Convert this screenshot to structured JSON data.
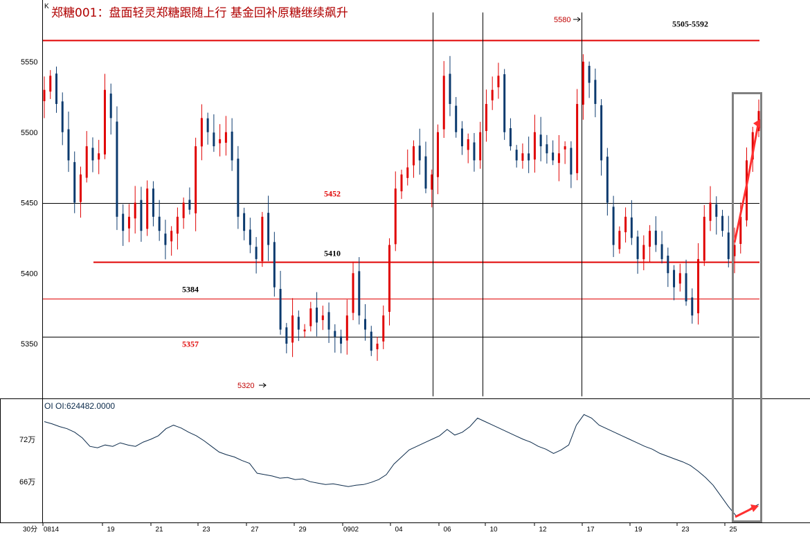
{
  "chart_data": [
    {
      "type": "candlestick",
      "title": "郑糖001：盘面轻灵郑糖跟随上行  基金回补原糖继续飙升",
      "corner_label": "K",
      "ylim": [
        5310,
        5570
      ],
      "yticks": [
        "5550",
        "5500",
        "5450",
        "5400",
        "5350"
      ],
      "xticks": [
        "0814",
        "19",
        "21",
        "23",
        "27",
        "29",
        "0902",
        "04",
        "06",
        "10",
        "12",
        "17",
        "19",
        "23",
        "25",
        "25"
      ],
      "period_label": "30分",
      "close": [
        5530,
        5540,
        5520,
        5500,
        5480,
        5450,
        5470,
        5490,
        5480,
        5485,
        5530,
        5510,
        5440,
        5430,
        5440,
        5450,
        5430,
        5460,
        5440,
        5430,
        5420,
        5430,
        5440,
        5450,
        5445,
        5490,
        5510,
        5500,
        5490,
        5495,
        5500,
        5480,
        5440,
        5430,
        5420,
        5410,
        5440,
        5420,
        5390,
        5360,
        5350,
        5370,
        5360,
        5360,
        5375,
        5365,
        5370,
        5360,
        5355,
        5350,
        5370,
        5400,
        5370,
        5360,
        5345,
        5350,
        5370,
        5420,
        5460,
        5470,
        5475,
        5490,
        5480,
        5460,
        5470,
        5500,
        5540,
        5520,
        5500,
        5490,
        5495,
        5480,
        5500,
        5520,
        5530,
        5540,
        5500,
        5490,
        5480,
        5485,
        5480,
        5500,
        5490,
        5485,
        5480,
        5485,
        5490,
        5470,
        5520,
        5550,
        5535,
        5520,
        5480,
        5450,
        5420,
        5430,
        5440,
        5425,
        5410,
        5420,
        5430,
        5420,
        5410,
        5400,
        5390,
        5400,
        5380,
        5370,
        5410,
        5440,
        5450,
        5440,
        5430,
        5410,
        5420,
        5440,
        5480,
        5500,
        5515
      ],
      "levels": [
        {
          "label": "5505-5592",
          "value": 5565,
          "color": "#e00000",
          "label_color": "#000000"
        },
        {
          "label": "5452",
          "value": 5450,
          "color": "#000000",
          "label_color": "#e00000"
        },
        {
          "label": "5410",
          "value": 5408,
          "color": "#e00000",
          "label_color": "#000000"
        },
        {
          "label": "5384",
          "value": 5382,
          "color": "#e00000",
          "label_color": "#000000"
        },
        {
          "label": "5357",
          "value": 5355,
          "color": "#000000",
          "label_color": "#e00000"
        }
      ],
      "annotations": [
        {
          "text": "5580",
          "value": 5580
        },
        {
          "text": "5320",
          "value": 5320
        }
      ],
      "highlight_color": "#808080",
      "up_color": "#e00000",
      "down_color": "#0b3a6e"
    },
    {
      "type": "line",
      "title": "OI OI:624482.0000",
      "yticks": [
        "72万",
        "66万"
      ],
      "ylim": [
        60,
        76
      ],
      "values": [
        74.5,
        74.2,
        73.8,
        73.5,
        73.0,
        72.2,
        71.0,
        70.8,
        71.2,
        71.0,
        71.5,
        71.2,
        71.0,
        71.6,
        72.0,
        72.5,
        73.5,
        74.0,
        73.6,
        73.0,
        72.5,
        71.8,
        71.0,
        70.2,
        69.8,
        69.5,
        69.0,
        68.6,
        67.2,
        67.0,
        66.8,
        66.5,
        66.6,
        66.3,
        66.4,
        66.0,
        65.8,
        65.6,
        65.7,
        65.5,
        65.3,
        65.5,
        65.6,
        65.9,
        66.3,
        67.0,
        68.5,
        69.5,
        70.5,
        71.0,
        71.5,
        72.0,
        72.5,
        73.4,
        72.6,
        73.0,
        73.8,
        75.0,
        74.5,
        74.0,
        73.5,
        73.0,
        72.5,
        72.0,
        71.6,
        71.0,
        70.6,
        70.0,
        70.5,
        71.2,
        74.0,
        75.5,
        75.0,
        74.0,
        73.5,
        73.0,
        72.5,
        72.0,
        71.5,
        71.0,
        70.6,
        70.0,
        69.6,
        69.2,
        68.8,
        68.3,
        67.5,
        66.6,
        65.5,
        64.0,
        62.5,
        61.2,
        61.5,
        62.3,
        62.8
      ]
    }
  ]
}
